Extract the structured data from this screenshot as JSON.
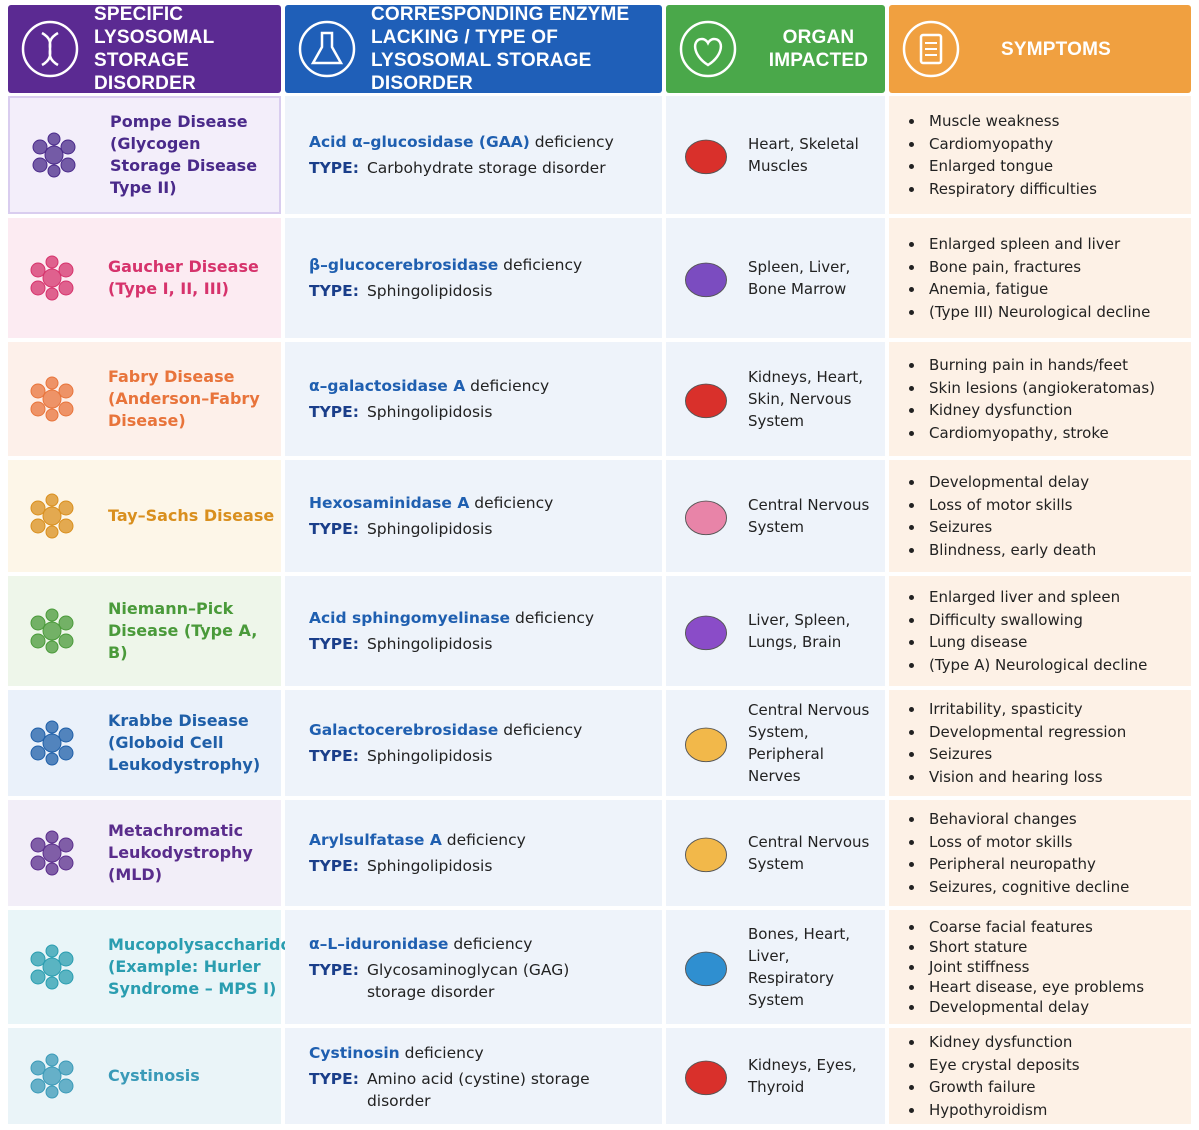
{
  "header": [
    "SPECIFIC LYSOSOMAL STORAGE DISORDER",
    "CORRESPONDING ENZYME LACKING / TYPE OF LYSOSOMAL STORAGE DISORDER",
    "ORGAN IMPACTED",
    "SYMPTOMS"
  ],
  "table": {
    "rows": [
      {
        "disease": "Pompe Disease (Glycogen Storage Disease Type II)",
        "enzyme": "Acid α–glucosidase (GAA)",
        "enzyme_suffix": "deficiency",
        "type_label": "TYPE:",
        "type": "Carbohydrate storage disorder",
        "organ": "Heart, Skeletal Muscles",
        "symptoms": [
          "Muscle weakness",
          "Cardiomyopathy",
          "Enlarged tongue",
          "Respiratory difficulties"
        ]
      },
      {
        "disease": "Gaucher Disease (Type I, II, III)",
        "enzyme": "β–glucocerebrosidase",
        "enzyme_suffix": "deficiency",
        "type_label": "TYPE:",
        "type": "Sphingolipidosis",
        "organ": "Spleen, Liver, Bone Marrow",
        "symptoms": [
          "Enlarged spleen and liver",
          "Bone pain, fractures",
          "Anemia, fatigue",
          "(Type III) Neurological decline"
        ]
      },
      {
        "disease": "Fabry Disease (Anderson–Fabry Disease)",
        "enzyme": "α–galactosidase A",
        "enzyme_suffix": "deficiency",
        "type_label": "TYPE:",
        "type": "Sphingolipidosis",
        "organ": "Kidneys, Heart, Skin, Nervous System",
        "symptoms": [
          "Burning pain in hands/feet",
          "Skin lesions (angiokeratomas)",
          "Kidney dysfunction",
          "Cardiomyopathy, stroke"
        ]
      },
      {
        "disease": "Tay–Sachs Disease",
        "enzyme": "Hexosaminidase A",
        "enzyme_suffix": "deficiency",
        "type_label": "TYPE:",
        "type": "Sphingolipidosis",
        "organ": "Central Nervous System",
        "symptoms": [
          "Developmental delay",
          "Loss of motor skills",
          "Seizures",
          "Blindness, early death"
        ]
      },
      {
        "disease": "Niemann–Pick Disease (Type A, B)",
        "enzyme": "Acid sphingomyelinase",
        "enzyme_suffix": "deficiency",
        "type_label": "TYPE:",
        "type": "Sphingolipidosis",
        "organ": "Liver, Spleen, Lungs, Brain",
        "symptoms": [
          "Enlarged liver and spleen",
          "Difficulty swallowing",
          "Lung disease",
          "(Type A) Neurological decline"
        ]
      },
      {
        "disease": "Krabbe Disease (Globoid Cell Leukodystrophy)",
        "enzyme": "Galactocerebrosidase",
        "enzyme_suffix": "deficiency",
        "type_label": "TYPE:",
        "type": "Sphingolipidosis",
        "organ": "Central Nervous System, Peripheral Nerves",
        "symptoms": [
          "Irritability, spasticity",
          "Developmental regression",
          "Seizures",
          "Vision and hearing loss"
        ]
      },
      {
        "disease": "Metachromatic Leukodystrophy (MLD)",
        "enzyme": "Arylsulfatase A",
        "enzyme_suffix": "deficiency",
        "type_label": "TYPE:",
        "type": "Sphingolipidosis",
        "organ": "Central Nervous System",
        "symptoms": [
          "Behavioral changes",
          "Loss of motor skills",
          "Peripheral neuropathy",
          "Seizures, cognitive decline"
        ]
      },
      {
        "disease": "Mucopolysaccharidoses (Example: Hurler Syndrome – MPS I)",
        "enzyme": "α–L–iduronidase",
        "enzyme_suffix": "deficiency",
        "type_label": "TYPE:",
        "type": "Glycosaminoglycan (GAG) storage disorder",
        "organ": "Bones, Heart, Liver, Respiratory System",
        "symptoms": [
          "Coarse facial features",
          "Short stature",
          "Joint stiffness",
          "Heart disease, eye problems",
          "Developmental delay"
        ]
      },
      {
        "disease": "Cystinosis",
        "enzyme": "Cystinosin",
        "enzyme_suffix": "deficiency",
        "type_label": "TYPE:",
        "type": "Amino acid (cystine) storage disorder",
        "organ": "Kidneys, Eyes, Thyroid",
        "symptoms": [
          "Kidney dysfunction",
          "Eye crystal deposits",
          "Growth failure",
          "Hypothyroidism"
        ]
      }
    ]
  }
}
